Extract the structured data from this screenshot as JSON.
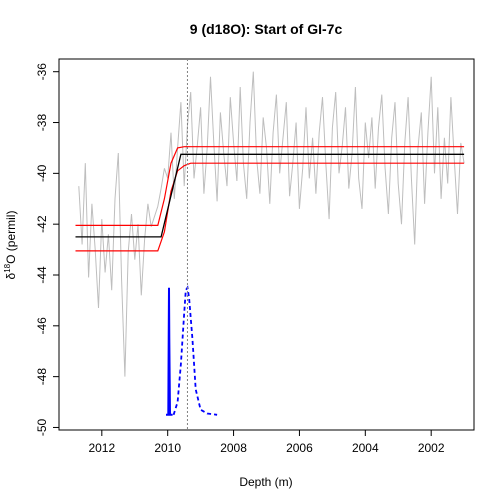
{
  "chart_data": {
    "type": "line",
    "title": "9 (d18O): Start of GI-7c",
    "xlabel": "Depth (m)",
    "ylabel_prefix": "δ",
    "ylabel_superscript": "18",
    "ylabel_suffix": "O (permil)",
    "xlim": [
      2013.3,
      2000.7
    ],
    "ylim": [
      -50.1,
      -35.5
    ],
    "x_ticks": [
      2012,
      2010,
      2008,
      2006,
      2004,
      2002
    ],
    "y_ticks": [
      -36,
      -38,
      -40,
      -42,
      -44,
      -46,
      -48,
      -50
    ],
    "transition_depth": 2009.4,
    "colors": {
      "raw": "#bebebe",
      "fit": "#000000",
      "bounds": "#ff0000",
      "distribution": "#0000ff",
      "vline": "#808080"
    },
    "series": [
      {
        "role": "raw_data",
        "x": [
          2012.7,
          2012.6,
          2012.5,
          2012.4,
          2012.3,
          2012.2,
          2012.1,
          2012.0,
          2011.9,
          2011.8,
          2011.7,
          2011.6,
          2011.5,
          2011.4,
          2011.3,
          2011.2,
          2011.1,
          2011.0,
          2010.9,
          2010.8,
          2010.7,
          2010.6,
          2010.5,
          2010.4,
          2010.3,
          2010.2,
          2010.1,
          2010.0,
          2009.9,
          2009.8,
          2009.7,
          2009.6,
          2009.5,
          2009.4,
          2009.3,
          2009.2,
          2009.1,
          2009.0,
          2008.9,
          2008.8,
          2008.7,
          2008.6,
          2008.5,
          2008.4,
          2008.3,
          2008.2,
          2008.1,
          2008.0,
          2007.9,
          2007.8,
          2007.7,
          2007.6,
          2007.5,
          2007.4,
          2007.3,
          2007.2,
          2007.1,
          2007.0,
          2006.9,
          2006.8,
          2006.7,
          2006.6,
          2006.5,
          2006.4,
          2006.3,
          2006.2,
          2006.1,
          2006.0,
          2005.9,
          2005.8,
          2005.7,
          2005.6,
          2005.5,
          2005.4,
          2005.3,
          2005.2,
          2005.1,
          2005.0,
          2004.9,
          2004.8,
          2004.7,
          2004.6,
          2004.5,
          2004.4,
          2004.3,
          2004.2,
          2004.1,
          2004.0,
          2003.9,
          2003.8,
          2003.7,
          2003.6,
          2003.5,
          2003.4,
          2003.3,
          2003.2,
          2003.1,
          2003.0,
          2002.9,
          2002.8,
          2002.7,
          2002.6,
          2002.5,
          2002.4,
          2002.3,
          2002.2,
          2002.1,
          2002.0,
          2001.9,
          2001.8,
          2001.7,
          2001.6,
          2001.5,
          2001.4,
          2001.3,
          2001.2,
          2001.1,
          2001.0
        ],
        "y": [
          -40.5,
          -42.8,
          -39.6,
          -44.1,
          -41.2,
          -43.0,
          -45.3,
          -41.8,
          -43.9,
          -42.4,
          -44.6,
          -41.0,
          -39.2,
          -44.2,
          -48.0,
          -43.1,
          -41.6,
          -43.4,
          -42.0,
          -44.8,
          -42.6,
          -41.2,
          -42.1,
          -41.7,
          -41.3,
          -40.6,
          -39.8,
          -40.2,
          -38.4,
          -41.0,
          -39.0,
          -37.2,
          -40.5,
          -38.1,
          -36.8,
          -40.2,
          -38.9,
          -37.4,
          -40.8,
          -39.0,
          -36.2,
          -38.8,
          -41.1,
          -37.6,
          -39.2,
          -40.5,
          -37.0,
          -38.8,
          -40.3,
          -36.6,
          -39.6,
          -41.0,
          -38.0,
          -36.0,
          -39.4,
          -40.8,
          -37.8,
          -39.0,
          -41.2,
          -38.4,
          -36.9,
          -40.0,
          -38.6,
          -37.2,
          -40.9,
          -39.6,
          -38.0,
          -41.4,
          -39.8,
          -37.4,
          -40.2,
          -38.6,
          -40.8,
          -38.4,
          -37.0,
          -39.6,
          -41.8,
          -38.2,
          -36.8,
          -40.0,
          -38.9,
          -37.4,
          -40.6,
          -39.2,
          -36.6,
          -40.2,
          -41.4,
          -38.0,
          -39.4,
          -37.8,
          -40.6,
          -38.2,
          -36.9,
          -39.8,
          -41.6,
          -38.6,
          -37.2,
          -40.4,
          -42.0,
          -38.8,
          -37.0,
          -40.2,
          -42.8,
          -39.0,
          -37.6,
          -41.2,
          -38.4,
          -36.2,
          -40.0,
          -37.4,
          -41.0,
          -38.6,
          -40.4,
          -37.0,
          -39.4,
          -41.6,
          -38.8,
          -39.6
        ]
      },
      {
        "role": "ramp_fit",
        "x": [
          2012.8,
          2010.2,
          2009.6,
          2001.0
        ],
        "y": [
          -42.5,
          -42.5,
          -39.25,
          -39.25
        ]
      },
      {
        "role": "ramp_lower_bound",
        "x": [
          2012.8,
          2010.3,
          2010.1,
          2009.9,
          2009.7,
          2009.5,
          2009.3,
          2001.0
        ],
        "y": [
          -43.05,
          -43.05,
          -42.3,
          -40.7,
          -39.9,
          -39.7,
          -39.6,
          -39.6
        ]
      },
      {
        "role": "ramp_upper_bound",
        "x": [
          2012.8,
          2010.3,
          2010.1,
          2009.9,
          2009.7,
          2009.5,
          2009.3,
          2001.0
        ],
        "y": [
          -42.05,
          -42.05,
          -41.0,
          -39.6,
          -39.0,
          -38.95,
          -38.95,
          -38.95
        ]
      },
      {
        "role": "onset_distribution",
        "x": [
          2010.05,
          2009.98,
          2009.97,
          2009.96,
          2009.95,
          2009.93,
          2009.85
        ],
        "y": [
          -49.5,
          -49.5,
          -46.5,
          -44.5,
          -46.5,
          -49.5,
          -49.5
        ]
      },
      {
        "role": "end_distribution",
        "x": [
          2009.82,
          2009.7,
          2009.6,
          2009.5,
          2009.45,
          2009.4,
          2009.35,
          2009.25,
          2009.15,
          2009.0,
          2008.8,
          2008.5
        ],
        "y": [
          -49.5,
          -49.0,
          -47.5,
          -45.5,
          -44.6,
          -44.5,
          -44.9,
          -46.5,
          -48.5,
          -49.3,
          -49.45,
          -49.5
        ]
      }
    ]
  }
}
